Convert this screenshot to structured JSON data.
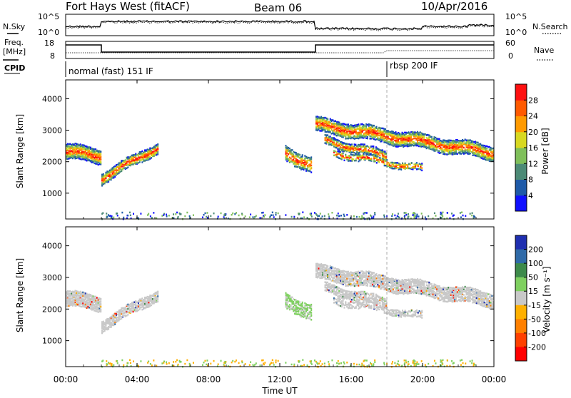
{
  "header": {
    "station": "Fort Hays West (fitACF)",
    "beam": "Beam 06",
    "date": "10/Apr/2016"
  },
  "status_panels": {
    "nsky_label": "N.Sky",
    "nsearch_label": "N.Search",
    "freq_label_1": "Freq.",
    "freq_label_2": "[MHz]",
    "nave_label": "Nave",
    "cpid_label": "CPID",
    "noise_ticks": [
      "10^5",
      "10^0"
    ],
    "freq_ticks": [
      "18",
      "8"
    ],
    "nave_ticks": [
      "60",
      "0"
    ],
    "cpid_segments": [
      {
        "label": "normal (fast) 151 IF",
        "start_hour": 0
      },
      {
        "label": "rbsp 200 IF",
        "start_hour": 18
      }
    ]
  },
  "power_colorbar": {
    "title": "Power [dB]",
    "ticks": [
      "4",
      "8",
      "12",
      "16",
      "20",
      "24",
      "28"
    ],
    "colors": [
      "#1010ff",
      "#1e5aa8",
      "#4c8a76",
      "#7fbf5a",
      "#d8d820",
      "#ff9a00",
      "#ff5a00",
      "#ff1010"
    ]
  },
  "velocity_colorbar": {
    "title": "Velocity [m s⁻¹]",
    "ticks": [
      "200",
      "100",
      "50",
      "15",
      "-15",
      "-50",
      "-100",
      "-200"
    ],
    "colors": [
      "#1f2fb0",
      "#2f6aa8",
      "#3d8a4a",
      "#7fd060",
      "#c8c8c8",
      "#ffb000",
      "#ff8000",
      "#ff4000",
      "#ff0000"
    ]
  },
  "chart_data": [
    {
      "type": "heatmap",
      "title": "Fort Hays West (fitACF)",
      "ylabel": "Slant Range [km]",
      "ylim": [
        180,
        4600
      ],
      "yticks": [
        1000,
        2000,
        3000,
        4000
      ],
      "xlim": [
        0,
        24
      ],
      "xticks": [
        "00:00",
        "04:00",
        "08:00",
        "12:00",
        "16:00",
        "20:00",
        "00:00"
      ],
      "xlabel": "Time UT",
      "color_quantity": "Power [dB]"
    },
    {
      "type": "heatmap",
      "ylabel": "Slant Range [km]",
      "ylim": [
        180,
        4600
      ],
      "yticks": [
        1000,
        2000,
        3000,
        4000
      ],
      "xlim": [
        0,
        24
      ],
      "xticks": [
        "00:00",
        "04:00",
        "08:00",
        "12:00",
        "16:00",
        "20:00",
        "00:00"
      ],
      "xlabel": "Time UT",
      "color_quantity": "Velocity [m s⁻¹]"
    }
  ]
}
